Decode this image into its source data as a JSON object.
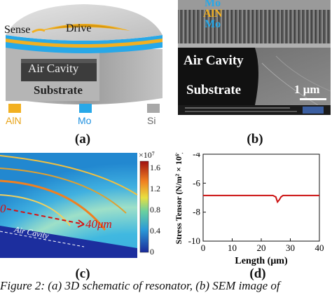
{
  "panel_a": {
    "sense_label": "Sense",
    "drive_label": "Drive",
    "air_cavity_label": "Air Cavity",
    "substrate_label": "Substrate",
    "legend": [
      {
        "label": "AlN",
        "color": "#f2b021",
        "text_color": "#e8a317"
      },
      {
        "label": "Mo",
        "color": "#28a8e8",
        "text_color": "#1e90e0"
      },
      {
        "label": "Si",
        "color": "#a8a8a8",
        "text_color": "#666666"
      }
    ],
    "panel_label": "(a)"
  },
  "panel_b": {
    "mo_top": "Mo",
    "aln": "AlN",
    "mo_bottom": "Mo",
    "air_cavity_label": "Air Cavity",
    "substrate_label": "Substrate",
    "scale_bar": "1 μm",
    "panel_label": "(b)"
  },
  "panel_c": {
    "colorbar_exponent": "×10⁷",
    "colorbar_ticks": [
      "1.6",
      "1.2",
      "0.8",
      "0.4",
      "0"
    ],
    "start_marker": "0",
    "end_marker": "40μm",
    "air_cavity_label": "Air Cavity",
    "panel_label": "(c)"
  },
  "panel_d": {
    "panel_label": "(d)"
  },
  "chart_data": {
    "type": "line",
    "xlabel": "Length (μm)",
    "ylabel": "Stress Tensor (N/m² × 10⁶)",
    "xlim": [
      0,
      40
    ],
    "ylim": [
      -10,
      -4
    ],
    "xticks": [
      "0",
      "10",
      "20",
      "30",
      "40"
    ],
    "yticks": [
      "-4",
      "-6",
      "-8",
      "-10"
    ],
    "grid": false,
    "series": [
      {
        "color": "#cc1111",
        "x": [
          0,
          5,
          10,
          15,
          20,
          24,
          25,
          25.6,
          26.2,
          26.8,
          27.5,
          28,
          30,
          35,
          40
        ],
        "y": [
          -6.85,
          -6.85,
          -6.85,
          -6.85,
          -6.85,
          -6.85,
          -6.95,
          -7.3,
          -7.15,
          -6.95,
          -6.85,
          -6.85,
          -6.85,
          -6.85,
          -6.85
        ]
      }
    ]
  },
  "caption": "Figure 2: (a) 3D schematic of resonator, (b) SEM image of"
}
